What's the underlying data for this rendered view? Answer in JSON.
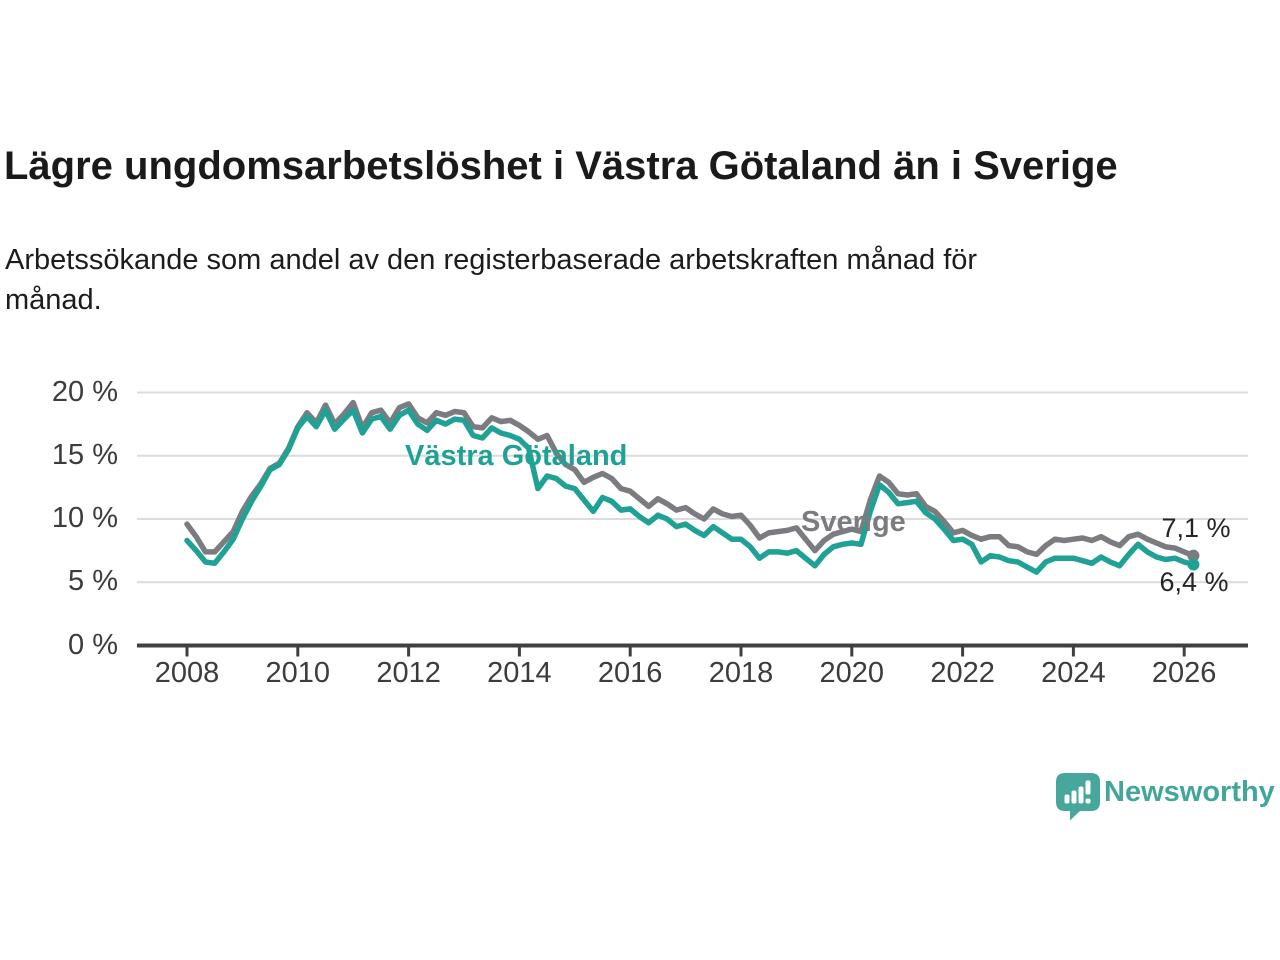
{
  "header": {
    "title": "Lägre ungdomsarbetslöshet i Västra Götaland än i Sverige",
    "subtitle_lines": [
      "Arbetssökande som andel av den registerbaserade arbetskraften månad för",
      "månad."
    ]
  },
  "chart_data": {
    "type": "line",
    "x_start_year": 2008,
    "x_step_months": 2,
    "x_end_label_note": "series end early 2026",
    "x_tick_years": [
      2008,
      2010,
      2012,
      2014,
      2016,
      2018,
      2020,
      2022,
      2024,
      2026
    ],
    "ylim": [
      0,
      20
    ],
    "y_ticks": [
      {
        "label": "0 %",
        "value": 0
      },
      {
        "label": "5 %",
        "value": 5
      },
      {
        "label": "10 %",
        "value": 10
      },
      {
        "label": "15 %",
        "value": 15
      },
      {
        "label": "20 %",
        "value": 20
      }
    ],
    "grid": true,
    "legend": "inline-labels",
    "series": [
      {
        "name": "Sverige",
        "color": "#7b7c80",
        "end_label": "7,1 %",
        "end_value": 7.1,
        "values": [
          9.6,
          8.6,
          7.4,
          7.4,
          8.2,
          9.0,
          10.6,
          11.8,
          12.8,
          14.0,
          14.4,
          15.6,
          17.3,
          18.4,
          17.6,
          19.0,
          17.5,
          18.3,
          19.2,
          17.2,
          18.4,
          18.6,
          17.6,
          18.8,
          19.1,
          18.0,
          17.6,
          18.4,
          18.2,
          18.5,
          18.4,
          17.3,
          17.2,
          18.0,
          17.7,
          17.8,
          17.4,
          16.9,
          16.3,
          16.6,
          15.2,
          14.3,
          13.9,
          12.9,
          13.3,
          13.6,
          13.2,
          12.4,
          12.2,
          11.6,
          11.0,
          11.6,
          11.2,
          10.7,
          10.9,
          10.4,
          10.0,
          10.8,
          10.4,
          10.2,
          10.3,
          9.5,
          8.5,
          8.9,
          9.0,
          9.1,
          9.3,
          8.4,
          7.5,
          8.3,
          8.8,
          9.0,
          9.2,
          9.0,
          11.5,
          13.4,
          12.9,
          12.0,
          11.9,
          12.0,
          11.0,
          10.6,
          9.8,
          8.9,
          9.1,
          8.7,
          8.4,
          8.6,
          8.6,
          7.9,
          7.8,
          7.4,
          7.2,
          7.9,
          8.4,
          8.3,
          8.4,
          8.5,
          8.3,
          8.6,
          8.2,
          7.9,
          8.6,
          8.8,
          8.4,
          8.1,
          7.8,
          7.7,
          7.4,
          7.1
        ]
      },
      {
        "name": "Västra Götaland",
        "color": "#1fa295",
        "end_label": "6,4 %",
        "end_value": 6.4,
        "values": [
          8.3,
          7.5,
          6.6,
          6.5,
          7.4,
          8.4,
          10.0,
          11.4,
          12.6,
          13.9,
          14.3,
          15.5,
          17.2,
          18.1,
          17.3,
          18.6,
          17.1,
          17.9,
          18.6,
          16.8,
          17.9,
          18.1,
          17.1,
          18.2,
          18.6,
          17.5,
          17.0,
          17.8,
          17.5,
          17.9,
          17.8,
          16.6,
          16.4,
          17.2,
          16.8,
          16.6,
          16.3,
          15.6,
          12.4,
          13.4,
          13.2,
          12.6,
          12.4,
          11.5,
          10.6,
          11.7,
          11.4,
          10.7,
          10.8,
          10.2,
          9.7,
          10.3,
          10.0,
          9.4,
          9.6,
          9.1,
          8.7,
          9.4,
          8.9,
          8.4,
          8.4,
          7.8,
          6.9,
          7.4,
          7.4,
          7.3,
          7.5,
          6.9,
          6.3,
          7.2,
          7.8,
          8.0,
          8.1,
          8.0,
          10.6,
          12.7,
          12.1,
          11.2,
          11.3,
          11.4,
          10.5,
          10.0,
          9.2,
          8.3,
          8.4,
          8.0,
          6.6,
          7.1,
          7.0,
          6.7,
          6.6,
          6.2,
          5.8,
          6.6,
          6.9,
          6.9,
          6.9,
          6.7,
          6.5,
          7.0,
          6.6,
          6.3,
          7.2,
          8.0,
          7.4,
          7.0,
          6.8,
          6.9,
          6.6,
          6.4
        ]
      }
    ],
    "colors": {
      "grid": "#dcdcdc",
      "axis": "#404040",
      "tick_text": "#3c3c3c"
    }
  },
  "branding": {
    "logo_text": "Newsworthy",
    "logo_color": "#43a69b"
  }
}
